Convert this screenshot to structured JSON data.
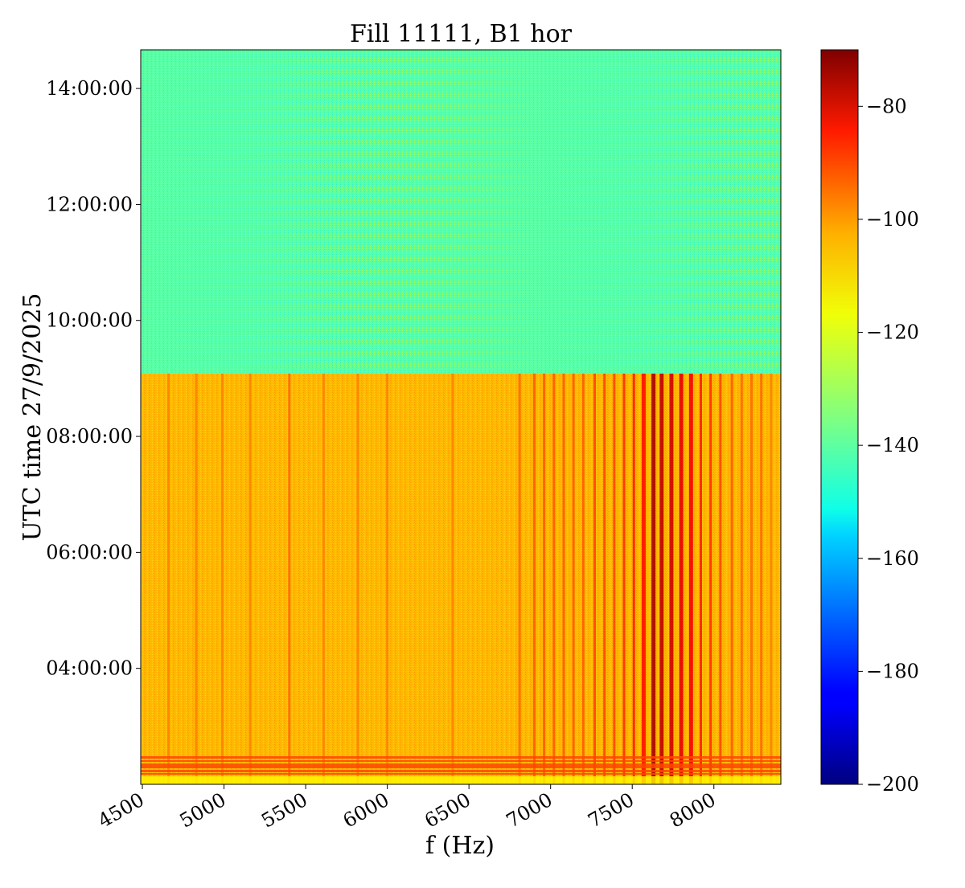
{
  "chart_data": {
    "type": "heatmap",
    "title": "Fill 11111, B1 hor",
    "xlabel": "f (Hz)",
    "ylabel": "UTC time 27/9/2025",
    "xlim": [
      4490,
      8410
    ],
    "ylim": [
      "02:00:00",
      "14:40:00"
    ],
    "x_ticks": [
      {
        "value": 4500,
        "label": "4500"
      },
      {
        "value": 5000,
        "label": "5000"
      },
      {
        "value": 5500,
        "label": "5500"
      },
      {
        "value": 6000,
        "label": "6000"
      },
      {
        "value": 6500,
        "label": "6500"
      },
      {
        "value": 7000,
        "label": "7000"
      },
      {
        "value": 7500,
        "label": "7500"
      },
      {
        "value": 8000,
        "label": "8000"
      }
    ],
    "y_ticks": [
      {
        "value": "04:00:00",
        "label": "04:00:00"
      },
      {
        "value": "06:00:00",
        "label": "06:00:00"
      },
      {
        "value": "08:00:00",
        "label": "08:00:00"
      },
      {
        "value": "10:00:00",
        "label": "10:00:00"
      },
      {
        "value": "12:00:00",
        "label": "12:00:00"
      },
      {
        "value": "14:00:00",
        "label": "14:00:00"
      }
    ],
    "colorbar": {
      "colormap": "jet",
      "range": [
        -200,
        -70
      ],
      "ticks": [
        {
          "value": -200,
          "label": "−200"
        },
        {
          "value": -180,
          "label": "−180"
        },
        {
          "value": -160,
          "label": "−160"
        },
        {
          "value": -140,
          "label": "−140"
        },
        {
          "value": -120,
          "label": "−120"
        },
        {
          "value": -100,
          "label": "−100"
        },
        {
          "value": -80,
          "label": "−80"
        }
      ]
    },
    "regions": [
      {
        "time_start": "09:05:00",
        "time_end": "14:40:00",
        "level": -140
      },
      {
        "time_start": "02:00:00",
        "time_end": "09:05:00",
        "level": -110
      }
    ],
    "lines": [
      {
        "f": 4660,
        "level": -103
      },
      {
        "f": 4830,
        "level": -103
      },
      {
        "f": 4990,
        "level": -103
      },
      {
        "f": 5160,
        "level": -103
      },
      {
        "f": 5400,
        "level": -100
      },
      {
        "f": 5610,
        "level": -103
      },
      {
        "f": 5820,
        "level": -103
      },
      {
        "f": 6000,
        "level": -103
      },
      {
        "f": 6400,
        "level": -103
      },
      {
        "f": 6810,
        "level": -100
      },
      {
        "f": 6900,
        "level": -98
      },
      {
        "f": 6960,
        "level": -98
      },
      {
        "f": 7020,
        "level": -98
      },
      {
        "f": 7080,
        "level": -98
      },
      {
        "f": 7140,
        "level": -98
      },
      {
        "f": 7200,
        "level": -98
      },
      {
        "f": 7270,
        "level": -95
      },
      {
        "f": 7330,
        "level": -95
      },
      {
        "f": 7390,
        "level": -95
      },
      {
        "f": 7450,
        "level": -92
      },
      {
        "f": 7510,
        "level": -90
      },
      {
        "f": 7570,
        "level": -88
      },
      {
        "f": 7630,
        "level": -75
      },
      {
        "f": 7680,
        "level": -78
      },
      {
        "f": 7740,
        "level": -80
      },
      {
        "f": 7800,
        "level": -83
      },
      {
        "f": 7860,
        "level": -85
      },
      {
        "f": 7920,
        "level": -90
      },
      {
        "f": 7980,
        "level": -92
      },
      {
        "f": 8040,
        "level": -95
      },
      {
        "f": 8110,
        "level": -98
      },
      {
        "f": 8170,
        "level": -100
      },
      {
        "f": 8230,
        "level": -100
      },
      {
        "f": 8290,
        "level": -100
      },
      {
        "f": 8350,
        "level": -103
      }
    ]
  }
}
